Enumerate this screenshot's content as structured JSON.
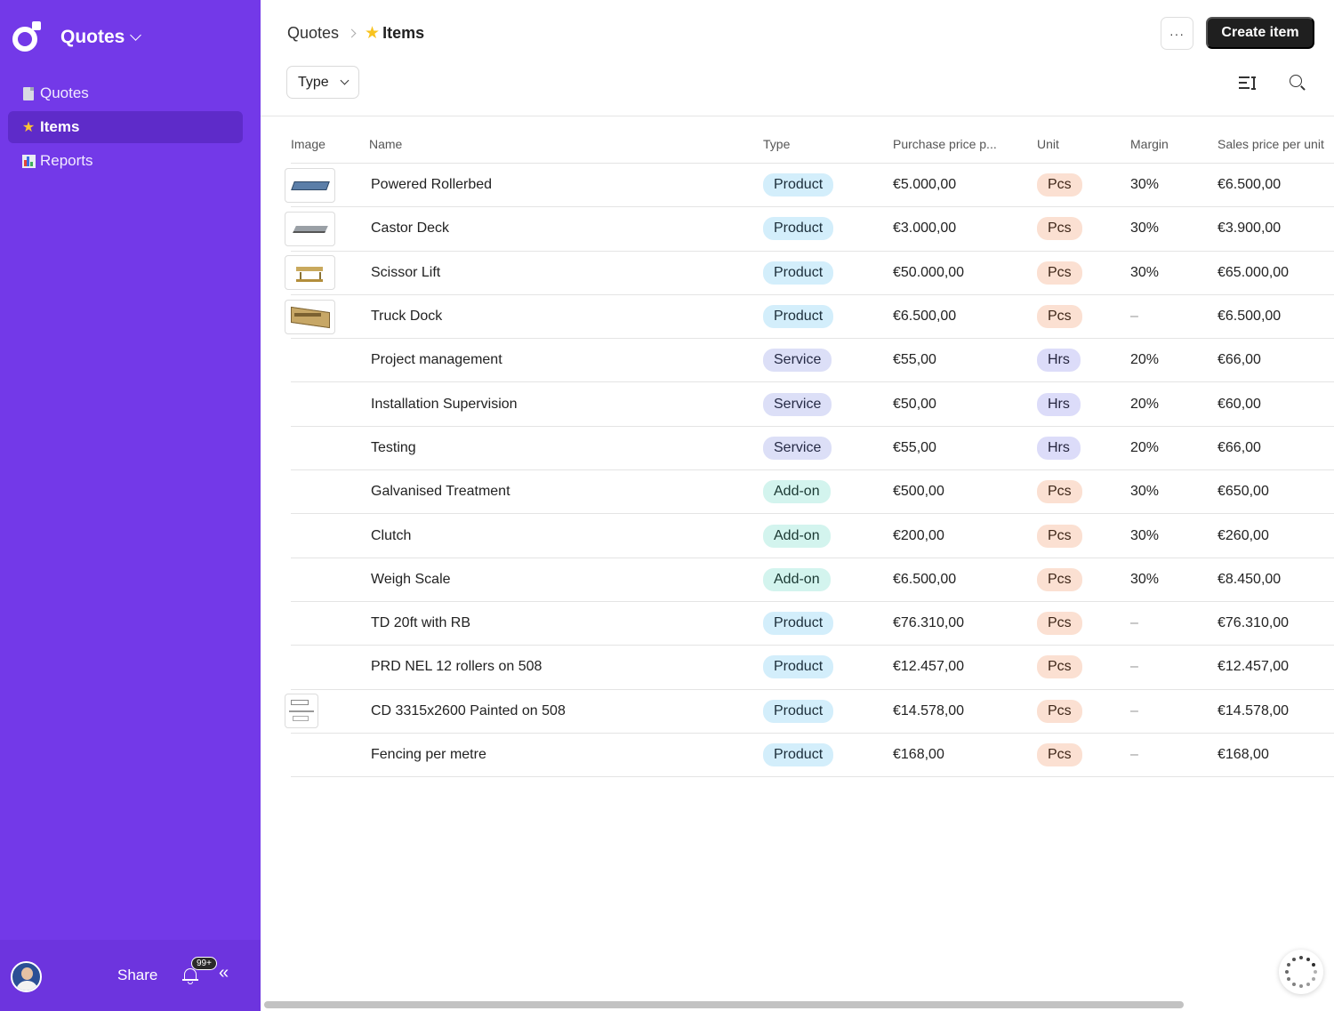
{
  "app": {
    "name": "Quotes",
    "icons": {
      "logo": "app-logo-icon",
      "switch": "chevron-down-icon"
    }
  },
  "sidebar": {
    "items": [
      {
        "label": "Quotes",
        "icon": "document-icon",
        "active": false
      },
      {
        "label": "Items",
        "icon": "star-icon",
        "active": true
      },
      {
        "label": "Reports",
        "icon": "bar-chart-icon",
        "active": false
      }
    ],
    "footer": {
      "share_label": "Share",
      "notification_count": "99+",
      "icons": {
        "avatar": "user-avatar",
        "bell": "bell-icon",
        "collapse": "double-chevron-left-icon"
      }
    }
  },
  "breadcrumb": {
    "root": "Quotes",
    "current": "Items",
    "current_icon": "star-icon"
  },
  "header": {
    "more_label": "···",
    "create_label": "Create item"
  },
  "toolbar": {
    "filter_label": "Type",
    "icons": {
      "display_options": "display-options-icon",
      "search": "search-icon"
    }
  },
  "table": {
    "columns": [
      "Image",
      "Name",
      "Type",
      "Purchase price p...",
      "Unit",
      "Margin",
      "Sales price per unit"
    ],
    "rows": [
      {
        "image": "rollerbed",
        "name": "Powered Rollerbed",
        "type": "Product",
        "purchase": "€5.000,00",
        "unit": "Pcs",
        "margin": "30%",
        "sales": "€6.500,00"
      },
      {
        "image": "castor-deck",
        "name": "Castor Deck",
        "type": "Product",
        "purchase": "€3.000,00",
        "unit": "Pcs",
        "margin": "30%",
        "sales": "€3.900,00"
      },
      {
        "image": "scissor-lift",
        "name": "Scissor Lift",
        "type": "Product",
        "purchase": "€50.000,00",
        "unit": "Pcs",
        "margin": "30%",
        "sales": "€65.000,00"
      },
      {
        "image": "truck-dock",
        "name": "Truck Dock",
        "type": "Product",
        "purchase": "€6.500,00",
        "unit": "Pcs",
        "margin": "–",
        "sales": "€6.500,00"
      },
      {
        "image": "",
        "name": "Project management",
        "type": "Service",
        "purchase": "€55,00",
        "unit": "Hrs",
        "margin": "20%",
        "sales": "€66,00"
      },
      {
        "image": "",
        "name": "Installation Supervision",
        "type": "Service",
        "purchase": "€50,00",
        "unit": "Hrs",
        "margin": "20%",
        "sales": "€60,00"
      },
      {
        "image": "",
        "name": "Testing",
        "type": "Service",
        "purchase": "€55,00",
        "unit": "Hrs",
        "margin": "20%",
        "sales": "€66,00"
      },
      {
        "image": "",
        "name": "Galvanised Treatment",
        "type": "Add-on",
        "purchase": "€500,00",
        "unit": "Pcs",
        "margin": "30%",
        "sales": "€650,00"
      },
      {
        "image": "",
        "name": "Clutch",
        "type": "Add-on",
        "purchase": "€200,00",
        "unit": "Pcs",
        "margin": "30%",
        "sales": "€260,00"
      },
      {
        "image": "",
        "name": "Weigh Scale",
        "type": "Add-on",
        "purchase": "€6.500,00",
        "unit": "Pcs",
        "margin": "30%",
        "sales": "€8.450,00"
      },
      {
        "image": "",
        "name": "TD 20ft with RB",
        "type": "Product",
        "purchase": "€76.310,00",
        "unit": "Pcs",
        "margin": "–",
        "sales": "€76.310,00"
      },
      {
        "image": "",
        "name": "PRD NEL 12 rollers on 508",
        "type": "Product",
        "purchase": "€12.457,00",
        "unit": "Pcs",
        "margin": "–",
        "sales": "€12.457,00"
      },
      {
        "image": "drawing",
        "name": "CD 3315x2600 Painted on 508",
        "type": "Product",
        "purchase": "€14.578,00",
        "unit": "Pcs",
        "margin": "–",
        "sales": "€14.578,00"
      },
      {
        "image": "",
        "name": "Fencing per metre",
        "type": "Product",
        "purchase": "€168,00",
        "unit": "Pcs",
        "margin": "–",
        "sales": "€168,00"
      }
    ]
  },
  "colors": {
    "sidebar": "#7339e8",
    "sidebar_active": "#5e2bc9",
    "product": "#d3eefb",
    "service": "#dcdff7",
    "addon": "#d3f4ee",
    "pcs": "#fbe0d2",
    "hrs": "#dcdcf9"
  },
  "status_icons": {
    "loading": "loading-spinner-icon"
  }
}
